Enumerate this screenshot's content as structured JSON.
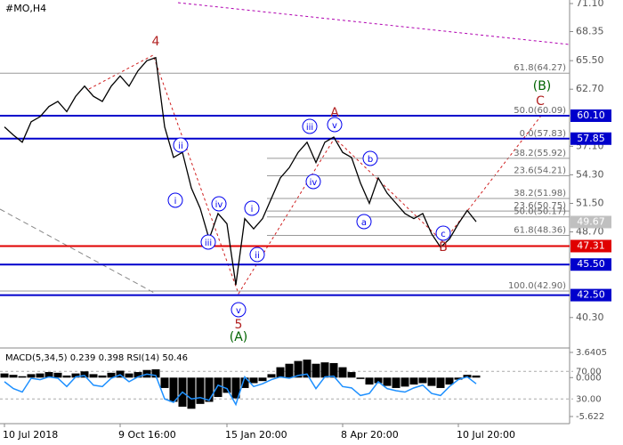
{
  "chart_data": [
    {
      "type": "line",
      "title": "#MO,H4",
      "color": "#000000",
      "values": [
        59,
        58.2,
        57.5,
        59.5,
        60,
        61,
        61.5,
        60.5,
        62,
        63,
        62,
        61.5,
        63,
        64,
        63,
        64.5,
        65.5,
        65.8,
        59,
        56,
        56.5,
        53,
        51,
        48,
        50.5,
        49.5,
        43.5,
        50,
        49,
        50,
        52,
        54,
        55,
        56.5,
        57.5,
        55.5,
        57.5,
        58,
        56.5,
        56,
        53.5,
        51.5,
        54,
        52.5,
        51.5,
        50.5,
        50,
        50.5,
        48.5,
        47.2,
        48,
        49.5,
        50.8,
        49.7
      ],
      "ylim": [
        37.4,
        71.45
      ],
      "yticks": [
        {
          "value": 71.1,
          "label": "71.10"
        },
        {
          "value": 68.35,
          "label": "68.35"
        },
        {
          "value": 65.5,
          "label": "65.50"
        },
        {
          "value": 62.7,
          "label": "62.70"
        },
        {
          "value": 57.1,
          "label": "57.10"
        },
        {
          "value": 54.3,
          "label": "54.30"
        },
        {
          "value": 51.5,
          "label": "51.50"
        },
        {
          "value": 48.7,
          "label": "48.70"
        },
        {
          "value": 40.3,
          "label": "40.30"
        }
      ],
      "levels": [
        {
          "value": 60.1,
          "label": "60.10",
          "color": "#0000cc",
          "line": true
        },
        {
          "value": 57.85,
          "label": "57.85",
          "color": "#0000cc",
          "line": true
        },
        {
          "value": 49.67,
          "label": "49.67",
          "color": "#c0c0c0",
          "line": false
        },
        {
          "value": 47.31,
          "label": "47.31",
          "color": "#e00000",
          "line": true
        },
        {
          "value": 45.5,
          "label": "45.50",
          "color": "#0000cc",
          "line": true
        },
        {
          "value": 42.5,
          "label": "42.50",
          "color": "#0000cc",
          "line": true
        }
      ],
      "fib_levels": [
        {
          "value": 64.27,
          "label": "61.8(64.27)"
        },
        {
          "value": 60.09,
          "label": "50.0(60.09)"
        },
        {
          "value": 57.83,
          "label": "0.0(57.83)"
        },
        {
          "value": 55.92,
          "label": "38.2(55.92)"
        },
        {
          "value": 54.21,
          "label": "23.6(54.21)"
        },
        {
          "value": 51.98,
          "label": "38.2(51.98)"
        },
        {
          "value": 50.75,
          "label": "23.6(50.75)"
        },
        {
          "value": 50.17,
          "label": "50.0(50.17)"
        },
        {
          "value": 48.36,
          "label": "61.8(48.36)"
        },
        {
          "value": 42.9,
          "label": "100.0(42.90)"
        }
      ],
      "waves": [
        {
          "label": "4",
          "style": "plain",
          "color": "#b22222"
        },
        {
          "label": "i",
          "style": "circle",
          "color": "#0000ee"
        },
        {
          "label": "ii",
          "style": "circle",
          "color": "#0000ee"
        },
        {
          "label": "iii",
          "style": "circle",
          "color": "#0000ee"
        },
        {
          "label": "iv",
          "style": "circle",
          "color": "#0000ee"
        },
        {
          "label": "v",
          "style": "circle",
          "color": "#0000ee"
        },
        {
          "label": "5",
          "style": "plain",
          "color": "#b22222"
        },
        {
          "label": "(A)",
          "style": "plain",
          "color": "#006400"
        },
        {
          "label": "i",
          "style": "circle",
          "color": "#0000ee"
        },
        {
          "label": "ii",
          "style": "circle",
          "color": "#0000ee"
        },
        {
          "label": "iii",
          "style": "circle",
          "color": "#0000ee"
        },
        {
          "label": "iv",
          "style": "circle",
          "color": "#0000ee"
        },
        {
          "label": "v",
          "style": "circle",
          "color": "#0000ee"
        },
        {
          "label": "A",
          "style": "plain",
          "color": "#b22222"
        },
        {
          "label": "a",
          "style": "circle",
          "color": "#0000ee"
        },
        {
          "label": "b",
          "style": "circle",
          "color": "#0000ee"
        },
        {
          "label": "c",
          "style": "circle",
          "color": "#0000ee"
        },
        {
          "label": "B",
          "style": "plain",
          "color": "#b22222"
        },
        {
          "label": "C",
          "style": "plain",
          "color": "#b22222"
        },
        {
          "label": "(B)",
          "style": "plain",
          "color": "#006400"
        }
      ]
    },
    {
      "type": "bar",
      "title": "MACD(5,34,5) 0.239 0.398 RSI(14) 50.46",
      "categories": [
        "10 Jul 2018",
        null,
        null,
        null,
        null,
        null,
        null,
        null,
        null,
        null,
        null,
        null,
        null,
        "9 Oct 16:00",
        null,
        null,
        null,
        null,
        null,
        null,
        null,
        null,
        null,
        null,
        null,
        "15 Jan 20:00",
        null,
        null,
        null,
        null,
        null,
        null,
        null,
        null,
        null,
        null,
        null,
        null,
        "8 Apr 20:00",
        null,
        null,
        null,
        null,
        null,
        null,
        null,
        null,
        null,
        null,
        null,
        null,
        "10 Jul 20:00",
        null,
        null
      ],
      "series": [
        {
          "color": "#000000",
          "values": [
            0.6,
            0.4,
            0.2,
            0.5,
            0.6,
            0.8,
            0.7,
            0.3,
            0.6,
            0.9,
            0.5,
            0.3,
            0.7,
            1.0,
            0.6,
            0.8,
            1.1,
            1.2,
            -1.5,
            -3.5,
            -4.2,
            -4.5,
            -3.8,
            -3.5,
            -2.8,
            -2.2,
            -3.0,
            -1.5,
            -0.8,
            -0.5,
            0.5,
            1.5,
            2.0,
            2.4,
            2.6,
            2.0,
            2.2,
            2.1,
            1.5,
            0.8,
            -0.2,
            -1.0,
            -0.8,
            -1.2,
            -1.5,
            -1.3,
            -1.0,
            -0.8,
            -1.2,
            -1.5,
            -1.0,
            -0.3,
            0.4,
            0.3
          ]
        },
        {
          "color": "#1e90ff",
          "type": "line",
          "axis": "y2",
          "values": [
            55,
            45,
            40,
            60,
            58,
            62,
            60,
            48,
            62,
            64,
            50,
            48,
            60,
            65,
            55,
            62,
            66,
            64,
            30,
            25,
            40,
            30,
            32,
            28,
            50,
            45,
            22,
            62,
            48,
            52,
            58,
            62,
            60,
            64,
            66,
            45,
            62,
            63,
            48,
            46,
            35,
            38,
            55,
            45,
            42,
            40,
            46,
            50,
            38,
            35,
            48,
            58,
            62,
            52
          ]
        }
      ],
      "ylim": [
        -6.65,
        4.15
      ],
      "yticks": [
        {
          "value": 3.6405,
          "label": "3.6405"
        },
        {
          "value": 0,
          "label": "0.000"
        },
        {
          "value": -5.622,
          "label": "-5.622"
        }
      ],
      "y2lim": [
        -5.8,
        102.6
      ],
      "y2ticks": [
        {
          "value": 70,
          "label": "70.00"
        },
        {
          "value": 30,
          "label": "30.00"
        }
      ]
    }
  ]
}
